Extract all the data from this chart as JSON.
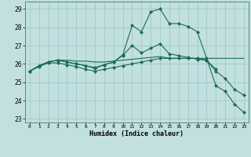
{
  "title": "",
  "xlabel": "Humidex (Indice chaleur)",
  "ylabel": "",
  "bg_color": "#c2e0e0",
  "grid_color": "#9cc4c4",
  "line_color": "#1a6b5a",
  "ylim": [
    22.8,
    29.4
  ],
  "xlim": [
    -0.5,
    23.5
  ],
  "yticks": [
    23,
    24,
    25,
    26,
    27,
    28,
    29
  ],
  "xticks": [
    0,
    1,
    2,
    3,
    4,
    5,
    6,
    7,
    8,
    9,
    10,
    11,
    12,
    13,
    14,
    15,
    16,
    17,
    18,
    19,
    20,
    21,
    22,
    23
  ],
  "series": [
    {
      "x": [
        0,
        1,
        2,
        3,
        4,
        5,
        6,
        7,
        8,
        9,
        10,
        11,
        12,
        13,
        14,
        15,
        16,
        17,
        18,
        19,
        20,
        21,
        22,
        23
      ],
      "y": [
        25.6,
        25.9,
        26.1,
        26.2,
        26.2,
        26.15,
        26.15,
        26.1,
        26.1,
        26.15,
        26.2,
        26.25,
        26.3,
        26.35,
        26.4,
        26.3,
        26.3,
        26.3,
        26.3,
        26.3,
        26.3,
        26.3,
        26.3,
        26.3
      ],
      "has_markers": false
    },
    {
      "x": [
        0,
        1,
        2,
        3,
        4,
        5,
        6,
        7,
        8,
        9,
        10,
        11,
        12,
        13,
        14,
        15,
        16,
        17,
        18,
        19,
        20,
        21,
        22,
        23
      ],
      "y": [
        25.6,
        25.9,
        26.1,
        26.2,
        26.1,
        26.0,
        25.9,
        25.8,
        25.95,
        26.1,
        26.5,
        28.1,
        27.75,
        28.85,
        29.0,
        28.2,
        28.2,
        28.05,
        27.75,
        26.3,
        24.8,
        24.5,
        23.8,
        23.35
      ],
      "has_markers": true
    },
    {
      "x": [
        0,
        1,
        2,
        3,
        4,
        5,
        6,
        7,
        8,
        9,
        10,
        11,
        12,
        13,
        14,
        15,
        16,
        17,
        18,
        19,
        20
      ],
      "y": [
        25.6,
        25.9,
        26.1,
        26.2,
        26.1,
        26.0,
        25.9,
        25.75,
        25.95,
        26.1,
        26.45,
        27.0,
        26.6,
        26.85,
        27.1,
        26.55,
        26.45,
        26.35,
        26.25,
        26.2,
        25.7
      ],
      "has_markers": true
    },
    {
      "x": [
        0,
        1,
        2,
        3,
        4,
        5,
        6,
        7,
        8,
        9,
        10,
        11,
        12,
        13,
        14,
        15,
        16,
        17,
        18,
        19,
        20,
        21,
        22,
        23
      ],
      "y": [
        25.6,
        25.85,
        26.05,
        26.05,
        25.95,
        25.85,
        25.7,
        25.6,
        25.7,
        25.8,
        25.9,
        26.0,
        26.1,
        26.2,
        26.3,
        26.3,
        26.3,
        26.3,
        26.3,
        26.2,
        25.6,
        25.2,
        24.6,
        24.3
      ],
      "has_markers": true
    }
  ]
}
